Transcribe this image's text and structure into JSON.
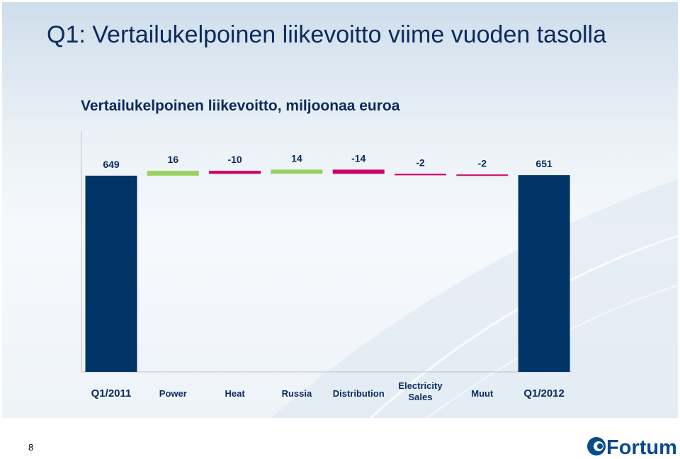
{
  "slide": {
    "title": "Q1: Vertailukelpoinen liikevoitto viime vuoden tasolla",
    "page_number": "8"
  },
  "logo": {
    "text": "Fortum",
    "color": "#0a4a8c"
  },
  "colors": {
    "total_bar": "#003366",
    "increase": "#99d161",
    "decrease": "#cc0066",
    "text": "#0b2a5c"
  },
  "chart_data": {
    "type": "waterfall",
    "title": "Vertailukelpoinen liikevoitto, miljoonaa euroa",
    "categories": [
      "Q1/2011",
      "Power",
      "Heat",
      "Russia",
      "Distribution",
      "Electricity Sales",
      "Muut",
      "Q1/2012"
    ],
    "category_lines": [
      [
        "Q1/2011"
      ],
      [
        "Power"
      ],
      [
        "Heat"
      ],
      [
        "Russia"
      ],
      [
        "Distribution"
      ],
      [
        "Electricity",
        "Sales"
      ],
      [
        "Muut"
      ],
      [
        "Q1/2012"
      ]
    ],
    "values": [
      649,
      16,
      -10,
      14,
      -14,
      -2,
      -2,
      651
    ],
    "labels": [
      "649",
      "16",
      "-10",
      "14",
      "-14",
      "-2",
      "-2",
      "651"
    ],
    "kinds": [
      "total",
      "delta",
      "delta",
      "delta",
      "delta",
      "delta",
      "delta",
      "total"
    ],
    "y_axis_visible": false,
    "grid": false,
    "legend": "none"
  }
}
